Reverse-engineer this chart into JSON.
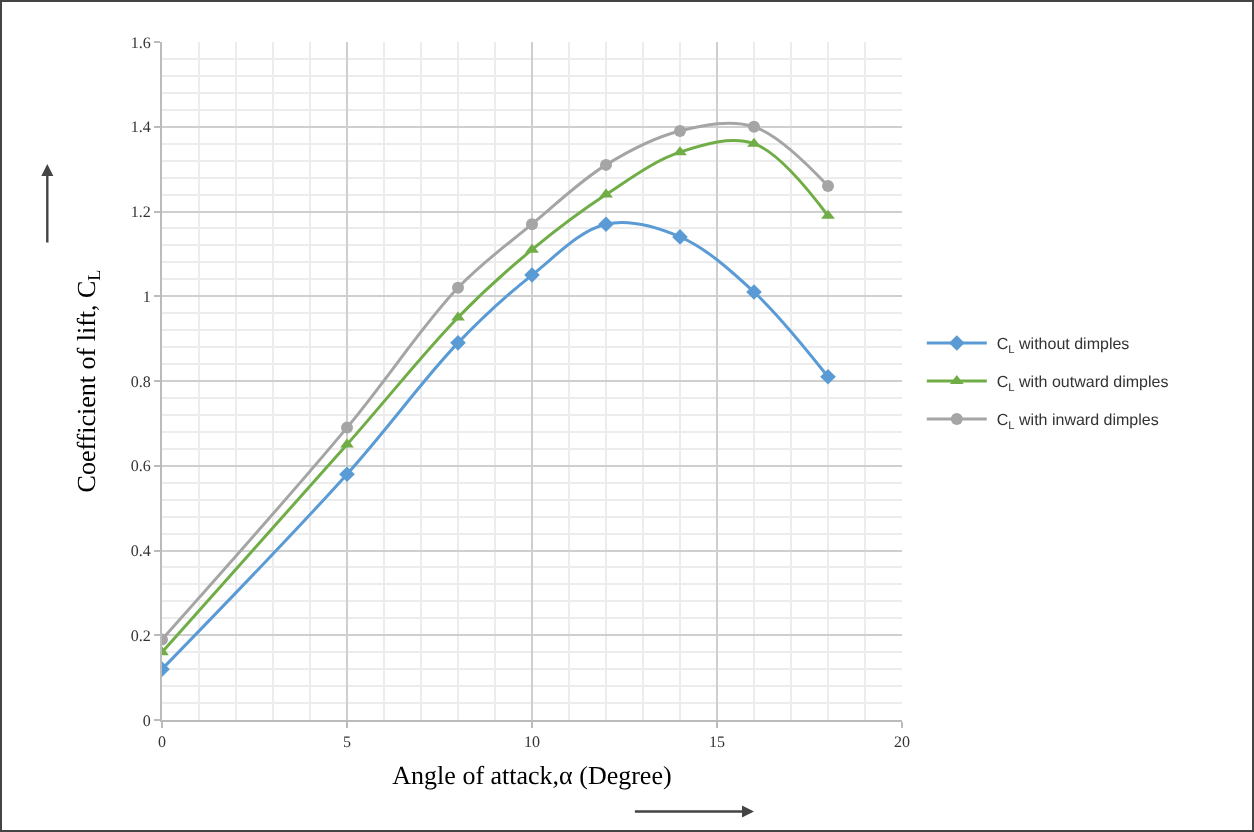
{
  "chart_data": {
    "type": "line",
    "xlabel": "Angle of attack,α (Degree)",
    "ylabel": "Coefficient of lift, C$_{L}$",
    "x": [
      0,
      5,
      8,
      10,
      12,
      14,
      16,
      18
    ],
    "series": [
      {
        "name": "C$_{L}$ without dimples",
        "color": "#5b9bd5",
        "marker": "diamond",
        "values": [
          0.12,
          0.58,
          0.89,
          1.05,
          1.17,
          1.14,
          1.01,
          0.81
        ]
      },
      {
        "name": "C$_{L}$ with outward dimples",
        "color": "#70ad47",
        "marker": "triangle",
        "values": [
          0.16,
          0.65,
          0.95,
          1.11,
          1.24,
          1.34,
          1.36,
          1.19
        ]
      },
      {
        "name": "C$_{L}$ with inward dimples",
        "color": "#a5a5a5",
        "marker": "circle",
        "values": [
          0.19,
          0.69,
          1.02,
          1.17,
          1.31,
          1.39,
          1.4,
          1.26
        ]
      }
    ],
    "xlim": [
      0,
      20
    ],
    "xticks": [
      0,
      5,
      10,
      15,
      20
    ],
    "ylim": [
      0,
      1.6
    ],
    "yticks": [
      0,
      0.2,
      0.4,
      0.6,
      0.8,
      1,
      1.2,
      1.4,
      1.6
    ],
    "grid": true,
    "legend": "right",
    "line_style": "solid"
  }
}
